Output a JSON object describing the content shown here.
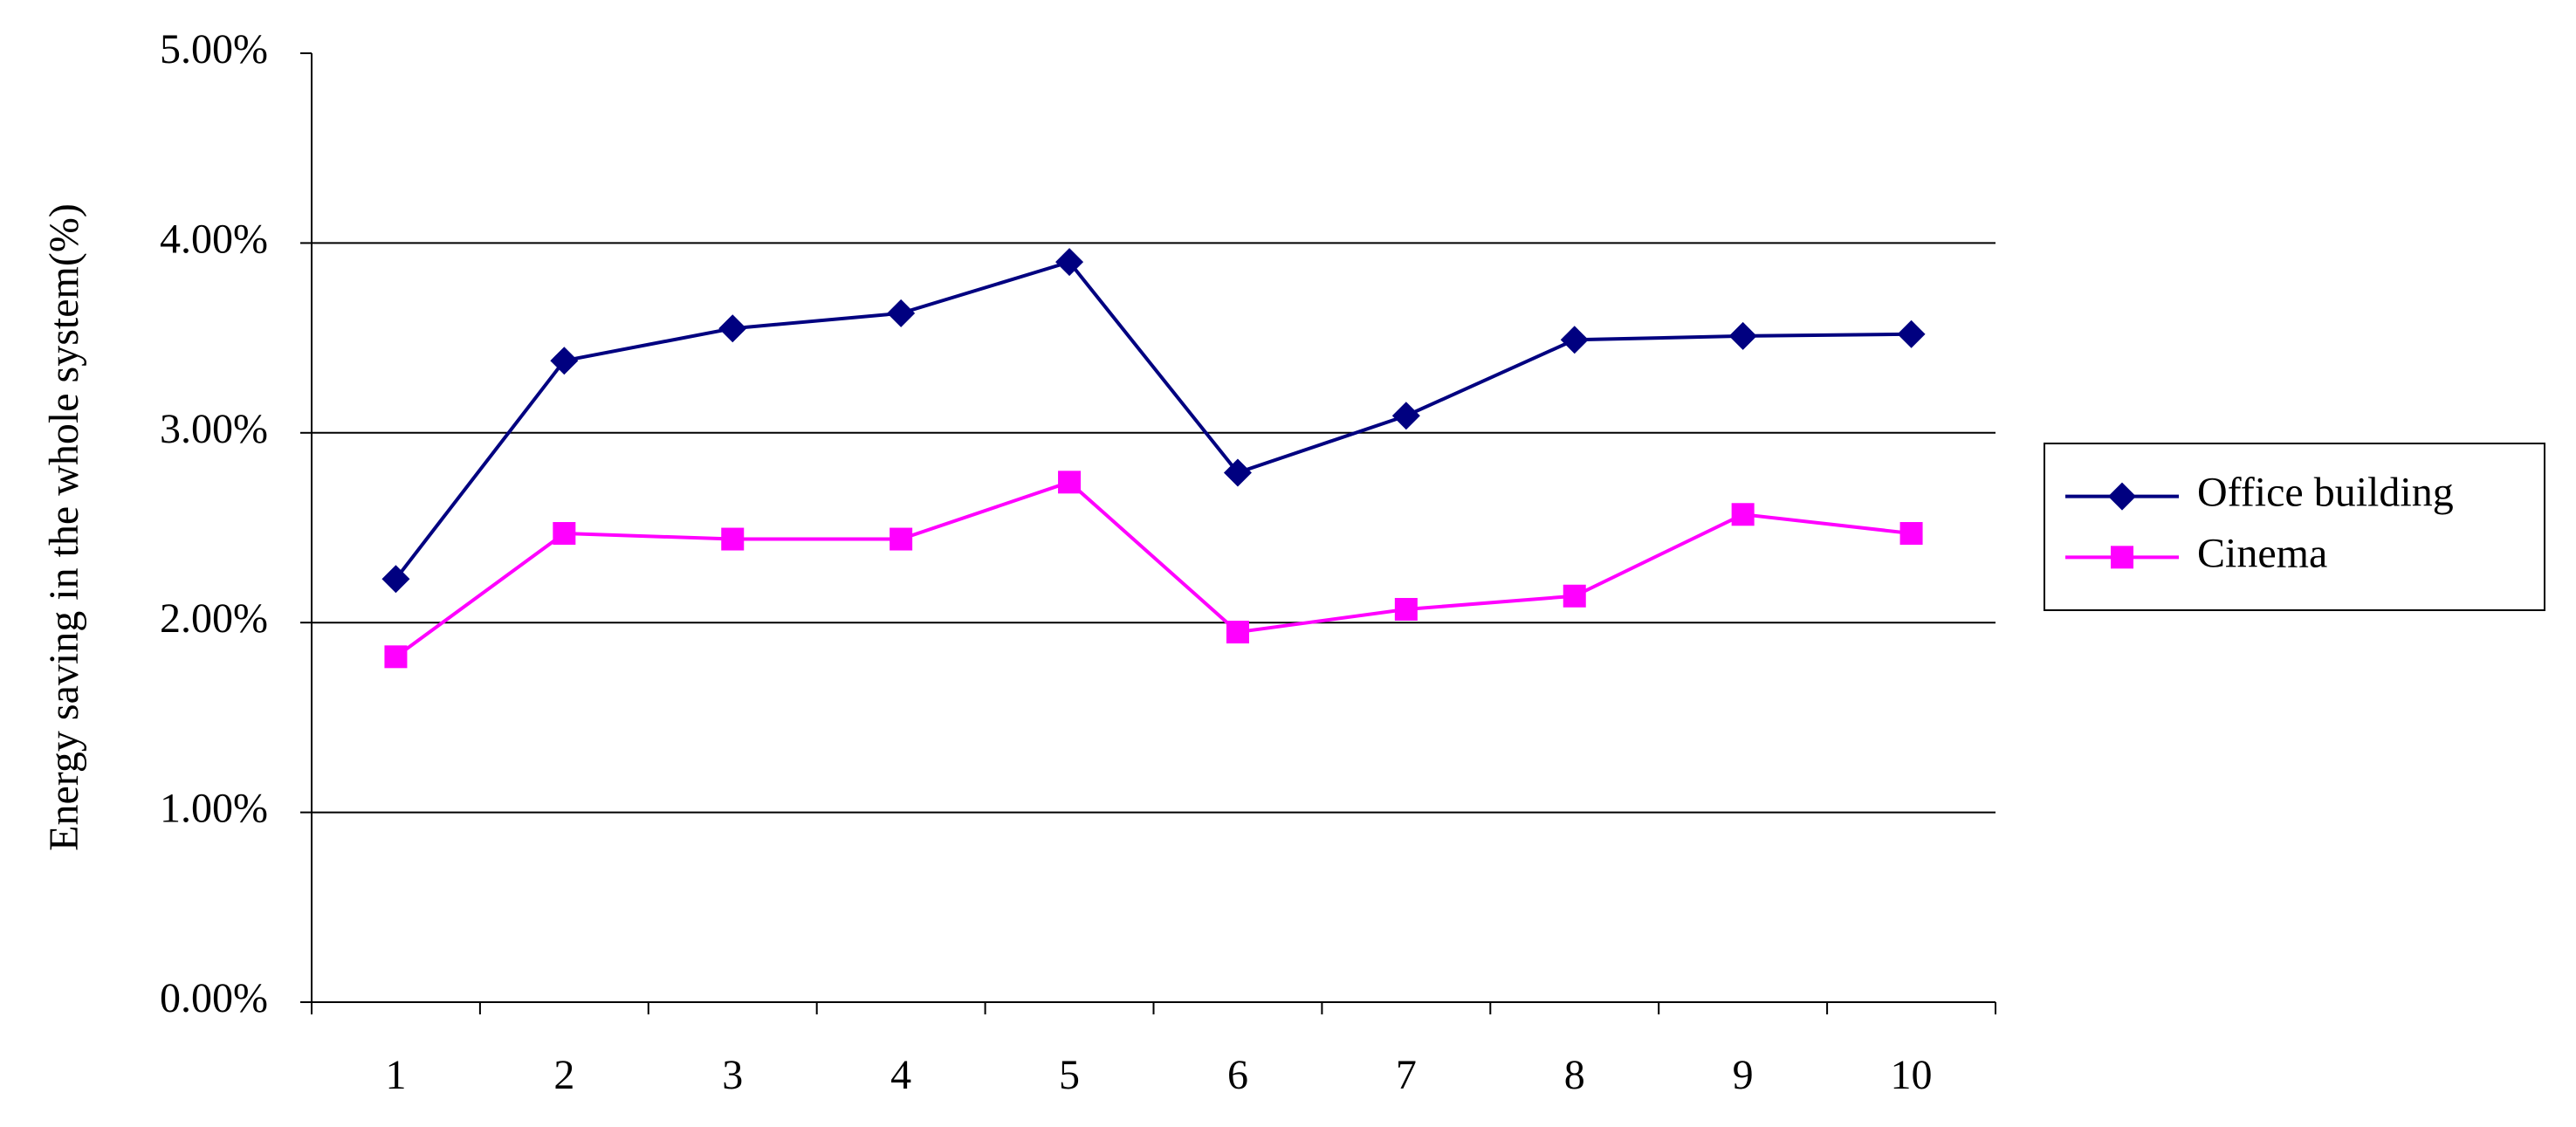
{
  "chart_data": {
    "type": "line",
    "y_label": "Energy saving in the whole system(%)",
    "categories": [
      "1",
      "2",
      "3",
      "4",
      "5",
      "6",
      "7",
      "8",
      "9",
      "10"
    ],
    "series": [
      {
        "name": "Office building",
        "color": "#000080",
        "marker": "diamond",
        "values": [
          2.23,
          3.38,
          3.55,
          3.63,
          3.9,
          2.79,
          3.09,
          3.49,
          3.51,
          3.52
        ]
      },
      {
        "name": "Cinema",
        "color": "#ff00ff",
        "marker": "square",
        "values": [
          1.82,
          2.47,
          2.44,
          2.44,
          2.74,
          1.95,
          2.07,
          2.14,
          2.57,
          2.47
        ]
      }
    ],
    "ylim": [
      0,
      5
    ],
    "yticks": [
      {
        "value": 0,
        "label": "0.00%"
      },
      {
        "value": 1,
        "label": "1.00%"
      },
      {
        "value": 2,
        "label": "2.00%"
      },
      {
        "value": 3,
        "label": "3.00%"
      },
      {
        "value": 4,
        "label": "4.00%"
      },
      {
        "value": 5,
        "label": "5.00%"
      }
    ],
    "grid": true,
    "legend": "right"
  }
}
